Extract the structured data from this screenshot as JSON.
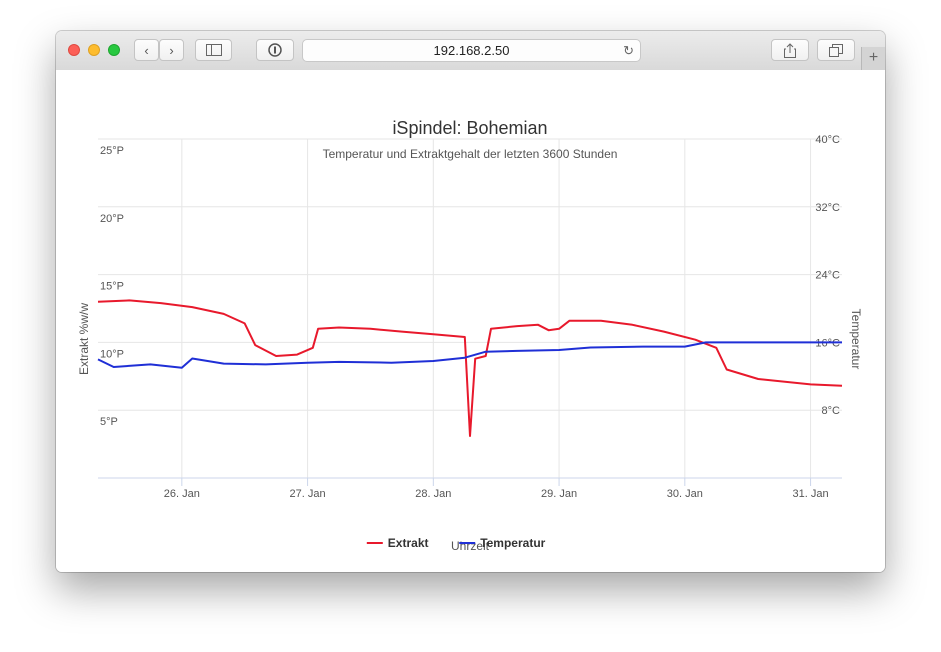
{
  "browser": {
    "url": "192.168.2.50",
    "icons": [
      "close-light",
      "minimize-light",
      "zoom-light",
      "back-icon",
      "forward-icon",
      "sidebar-icon",
      "reader-icon",
      "reload-icon",
      "share-icon",
      "tabs-icon",
      "new-tab-icon"
    ]
  },
  "chart_data": {
    "type": "line",
    "title": "iSpindel: Bohemian",
    "subtitle": "Temperatur und Extraktgehalt der letzten 3600 Stunden",
    "xlabel": "Uhrzeit",
    "x_type": "datetime",
    "xlim": [
      "2018-01-25 08:00",
      "2018-01-31 06:00"
    ],
    "x_ticks": [
      {
        "x": "2018-01-26 00:00",
        "label": "26. Jan"
      },
      {
        "x": "2018-01-27 00:00",
        "label": "27. Jan"
      },
      {
        "x": "2018-01-28 00:00",
        "label": "28. Jan"
      },
      {
        "x": "2018-01-29 00:00",
        "label": "29. Jan"
      },
      {
        "x": "2018-01-30 00:00",
        "label": "30. Jan"
      },
      {
        "x": "2018-01-31 00:00",
        "label": "31. Jan"
      }
    ],
    "y_left": {
      "label": "Extrakt %w/w",
      "ylim": [
        0,
        25
      ],
      "ticks": [
        {
          "v": 5,
          "label": "5°P"
        },
        {
          "v": 10,
          "label": "10°P"
        },
        {
          "v": 15,
          "label": "15°P"
        },
        {
          "v": 20,
          "label": "20°P"
        },
        {
          "v": 25,
          "label": "25°P"
        }
      ]
    },
    "y_right": {
      "label": "Temperatur",
      "ylim": [
        0,
        40
      ],
      "ticks": [
        {
          "v": 8,
          "label": "8°C"
        },
        {
          "v": 16,
          "label": "16°C"
        },
        {
          "v": 24,
          "label": "24°C"
        },
        {
          "v": 32,
          "label": "32°C"
        },
        {
          "v": 40,
          "label": "40°C"
        }
      ]
    },
    "grid": true,
    "legend": "bottom-center",
    "series": [
      {
        "name": "Extrakt",
        "axis": "left",
        "color": "#e8192c",
        "points": [
          [
            "2018-01-25 08:00",
            13.0
          ],
          [
            "2018-01-25 14:00",
            13.1
          ],
          [
            "2018-01-25 20:00",
            12.9
          ],
          [
            "2018-01-26 02:00",
            12.6
          ],
          [
            "2018-01-26 08:00",
            12.1
          ],
          [
            "2018-01-26 12:00",
            11.4
          ],
          [
            "2018-01-26 14:00",
            9.8
          ],
          [
            "2018-01-26 18:00",
            9.0
          ],
          [
            "2018-01-26 22:00",
            9.1
          ],
          [
            "2018-01-27 01:00",
            9.6
          ],
          [
            "2018-01-27 02:00",
            11.0
          ],
          [
            "2018-01-27 06:00",
            11.1
          ],
          [
            "2018-01-27 12:00",
            11.0
          ],
          [
            "2018-01-27 18:00",
            10.8
          ],
          [
            "2018-01-28 00:00",
            10.6
          ],
          [
            "2018-01-28 06:00",
            10.4
          ],
          [
            "2018-01-28 07:00",
            3.1
          ],
          [
            "2018-01-28 08:00",
            8.8
          ],
          [
            "2018-01-28 10:00",
            9.0
          ],
          [
            "2018-01-28 11:00",
            11.0
          ],
          [
            "2018-01-28 16:00",
            11.2
          ],
          [
            "2018-01-28 20:00",
            11.3
          ],
          [
            "2018-01-28 22:00",
            10.9
          ],
          [
            "2018-01-29 00:00",
            11.0
          ],
          [
            "2018-01-29 02:00",
            11.6
          ],
          [
            "2018-01-29 08:00",
            11.6
          ],
          [
            "2018-01-29 14:00",
            11.3
          ],
          [
            "2018-01-29 20:00",
            10.8
          ],
          [
            "2018-01-30 02:00",
            10.2
          ],
          [
            "2018-01-30 06:00",
            9.6
          ],
          [
            "2018-01-30 08:00",
            8.0
          ],
          [
            "2018-01-30 14:00",
            7.3
          ],
          [
            "2018-01-31 00:00",
            6.9
          ],
          [
            "2018-01-31 06:00",
            6.8
          ]
        ]
      },
      {
        "name": "Temperatur",
        "axis": "right",
        "color": "#1f2fd6",
        "points": [
          [
            "2018-01-25 08:00",
            14.0
          ],
          [
            "2018-01-25 11:00",
            13.1
          ],
          [
            "2018-01-25 18:00",
            13.4
          ],
          [
            "2018-01-26 00:00",
            13.0
          ],
          [
            "2018-01-26 02:00",
            14.1
          ],
          [
            "2018-01-26 08:00",
            13.5
          ],
          [
            "2018-01-26 16:00",
            13.4
          ],
          [
            "2018-01-27 00:00",
            13.6
          ],
          [
            "2018-01-27 06:00",
            13.7
          ],
          [
            "2018-01-27 16:00",
            13.6
          ],
          [
            "2018-01-28 00:00",
            13.8
          ],
          [
            "2018-01-28 06:00",
            14.2
          ],
          [
            "2018-01-28 10:00",
            14.9
          ],
          [
            "2018-01-28 16:00",
            15.0
          ],
          [
            "2018-01-29 00:00",
            15.1
          ],
          [
            "2018-01-29 06:00",
            15.4
          ],
          [
            "2018-01-29 16:00",
            15.5
          ],
          [
            "2018-01-30 00:00",
            15.5
          ],
          [
            "2018-01-30 04:00",
            16.0
          ],
          [
            "2018-01-30 12:00",
            16.0
          ],
          [
            "2018-01-31 06:00",
            16.0
          ]
        ]
      }
    ]
  }
}
